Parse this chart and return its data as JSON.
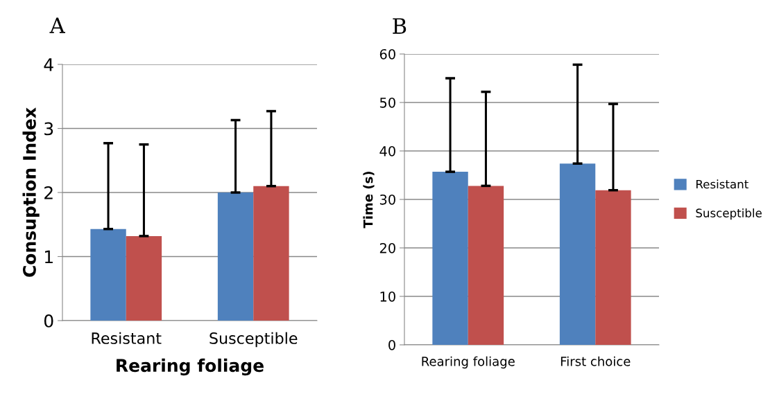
{
  "chart_data": [
    {
      "type": "bar",
      "title": "A",
      "ylabel": "Consuption Index",
      "xlabel": "Rearing foliage",
      "categories": [
        "Resistant",
        "Susceptible"
      ],
      "series": [
        {
          "color": "#4f81bd",
          "values": [
            1.43,
            2.0
          ],
          "errors": [
            [
              1.43,
              2.77
            ],
            [
              2.0,
              3.13
            ]
          ]
        },
        {
          "color": "#c0504d",
          "values": [
            1.32,
            2.1
          ],
          "errors": [
            [
              1.32,
              2.75
            ],
            [
              2.1,
              3.27
            ]
          ]
        }
      ],
      "ylim": [
        0,
        4
      ],
      "yticks": [
        0,
        1,
        2,
        3,
        4
      ],
      "grid": "y",
      "legend": false
    },
    {
      "type": "bar",
      "title": "B",
      "ylabel": "Time (s)",
      "categories": [
        "Rearing foliage",
        "First choice"
      ],
      "series": [
        {
          "name": "Resistant",
          "color": "#4f81bd",
          "values": [
            35.7,
            37.4
          ],
          "errors": [
            [
              35.7,
              55.0
            ],
            [
              37.4,
              57.8
            ]
          ]
        },
        {
          "name": "Susceptible",
          "color": "#c0504d",
          "values": [
            32.8,
            31.9
          ],
          "errors": [
            [
              32.8,
              52.2
            ],
            [
              31.9,
              49.7
            ]
          ]
        }
      ],
      "ylim": [
        0,
        60
      ],
      "yticks": [
        0,
        10,
        20,
        30,
        40,
        50,
        60
      ],
      "grid": "y",
      "legend": "right"
    }
  ]
}
